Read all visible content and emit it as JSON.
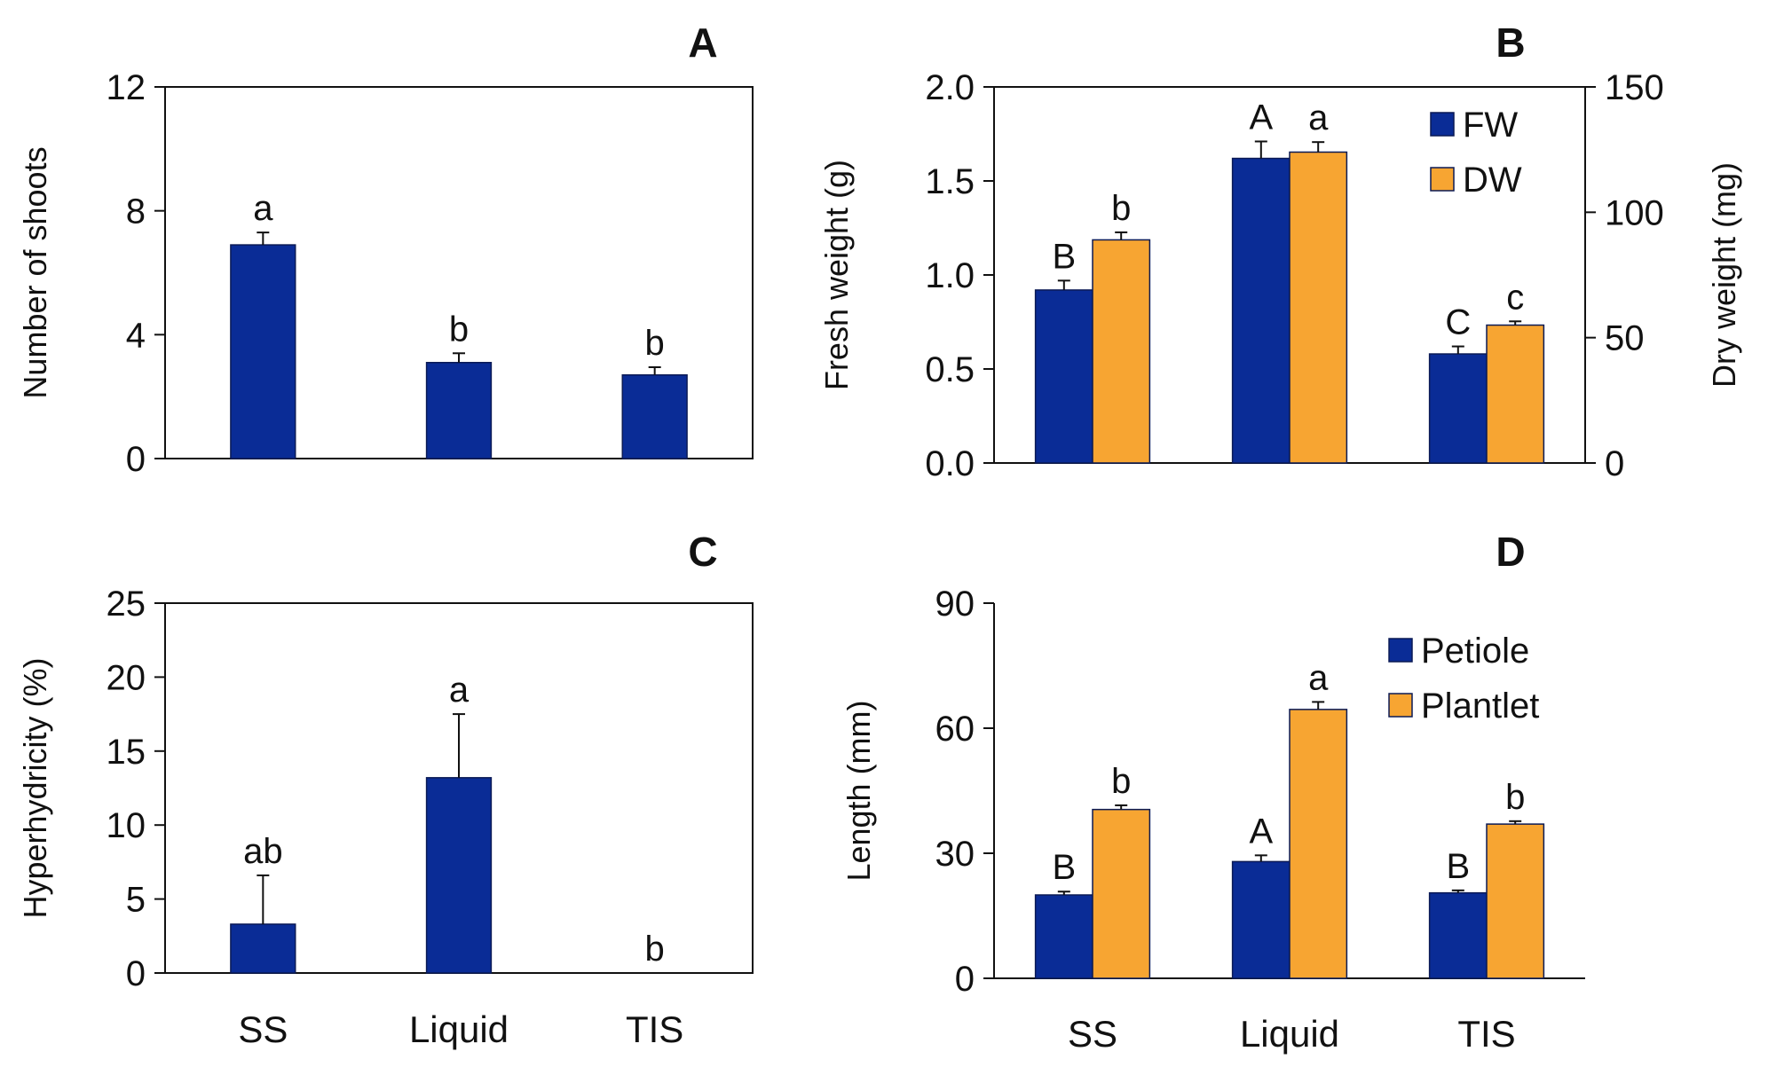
{
  "colors": {
    "blue": "#0a2c96",
    "orange": "#f7a532",
    "axis": "#111111"
  },
  "chart_data": [
    {
      "panel": "A",
      "type": "bar",
      "categories": [
        "SS",
        "Liquid",
        "TIS"
      ],
      "category_labels_shown": false,
      "ylabel": "Number of shoots",
      "ylim": [
        0,
        12
      ],
      "yticks": [
        "0",
        "4",
        "8",
        "12"
      ],
      "series": [
        {
          "name": "Number of shoots",
          "color": "blue",
          "values": [
            6.9,
            3.1,
            2.7
          ],
          "errors": [
            0.4,
            0.3,
            0.25
          ],
          "letters": [
            "a",
            "b",
            "b"
          ]
        }
      ]
    },
    {
      "panel": "B",
      "type": "bar",
      "categories": [
        "SS",
        "Liquid",
        "TIS"
      ],
      "category_labels_shown": false,
      "ylabel": "Fresh weight (g)",
      "ylabel_right": "Dry weight (mg)",
      "ylim": [
        0,
        2.0
      ],
      "ylim_right": [
        0,
        150
      ],
      "yticks": [
        "0.0",
        "0.5",
        "1.0",
        "1.5",
        "2.0"
      ],
      "yticks_right": [
        "0",
        "50",
        "100",
        "150"
      ],
      "legend": [
        "FW",
        "DW"
      ],
      "legend_position": "top-right",
      "series": [
        {
          "name": "FW",
          "color": "blue",
          "axis": "left",
          "values": [
            0.92,
            1.62,
            0.58
          ],
          "errors": [
            0.05,
            0.09,
            0.04
          ],
          "letters": [
            "B",
            "A",
            "C"
          ]
        },
        {
          "name": "DW",
          "color": "orange",
          "axis": "right",
          "values": [
            89,
            124,
            55
          ],
          "errors": [
            3,
            4,
            1.5
          ],
          "letters": [
            "b",
            "a",
            "c"
          ]
        }
      ]
    },
    {
      "panel": "C",
      "type": "bar",
      "categories": [
        "SS",
        "Liquid",
        "TIS"
      ],
      "category_labels_shown": true,
      "ylabel": "Hyperhydricity (%)",
      "ylim": [
        0,
        25
      ],
      "yticks": [
        "0",
        "5",
        "10",
        "15",
        "20",
        "25"
      ],
      "series": [
        {
          "name": "Hyperhydricity",
          "color": "blue",
          "values": [
            3.3,
            13.2,
            0
          ],
          "errors": [
            3.3,
            4.3,
            0
          ],
          "letters": [
            "ab",
            "a",
            "b"
          ]
        }
      ]
    },
    {
      "panel": "D",
      "type": "bar",
      "categories": [
        "SS",
        "Liquid",
        "TIS"
      ],
      "category_labels_shown": true,
      "ylabel": "Length  (mm)",
      "ylim": [
        0,
        90
      ],
      "yticks": [
        "0",
        "30",
        "60",
        "90"
      ],
      "legend": [
        "Petiole",
        "Plantlet"
      ],
      "legend_position": "top-right",
      "series": [
        {
          "name": "Petiole",
          "color": "blue",
          "values": [
            20,
            28,
            20.5
          ],
          "errors": [
            0.8,
            1.5,
            0.6
          ],
          "letters": [
            "B",
            "A",
            "B"
          ]
        },
        {
          "name": "Plantlet",
          "color": "orange",
          "values": [
            40.5,
            64.5,
            37
          ],
          "errors": [
            1.0,
            1.8,
            0.7
          ],
          "letters": [
            "b",
            "a",
            "b"
          ]
        }
      ]
    }
  ]
}
